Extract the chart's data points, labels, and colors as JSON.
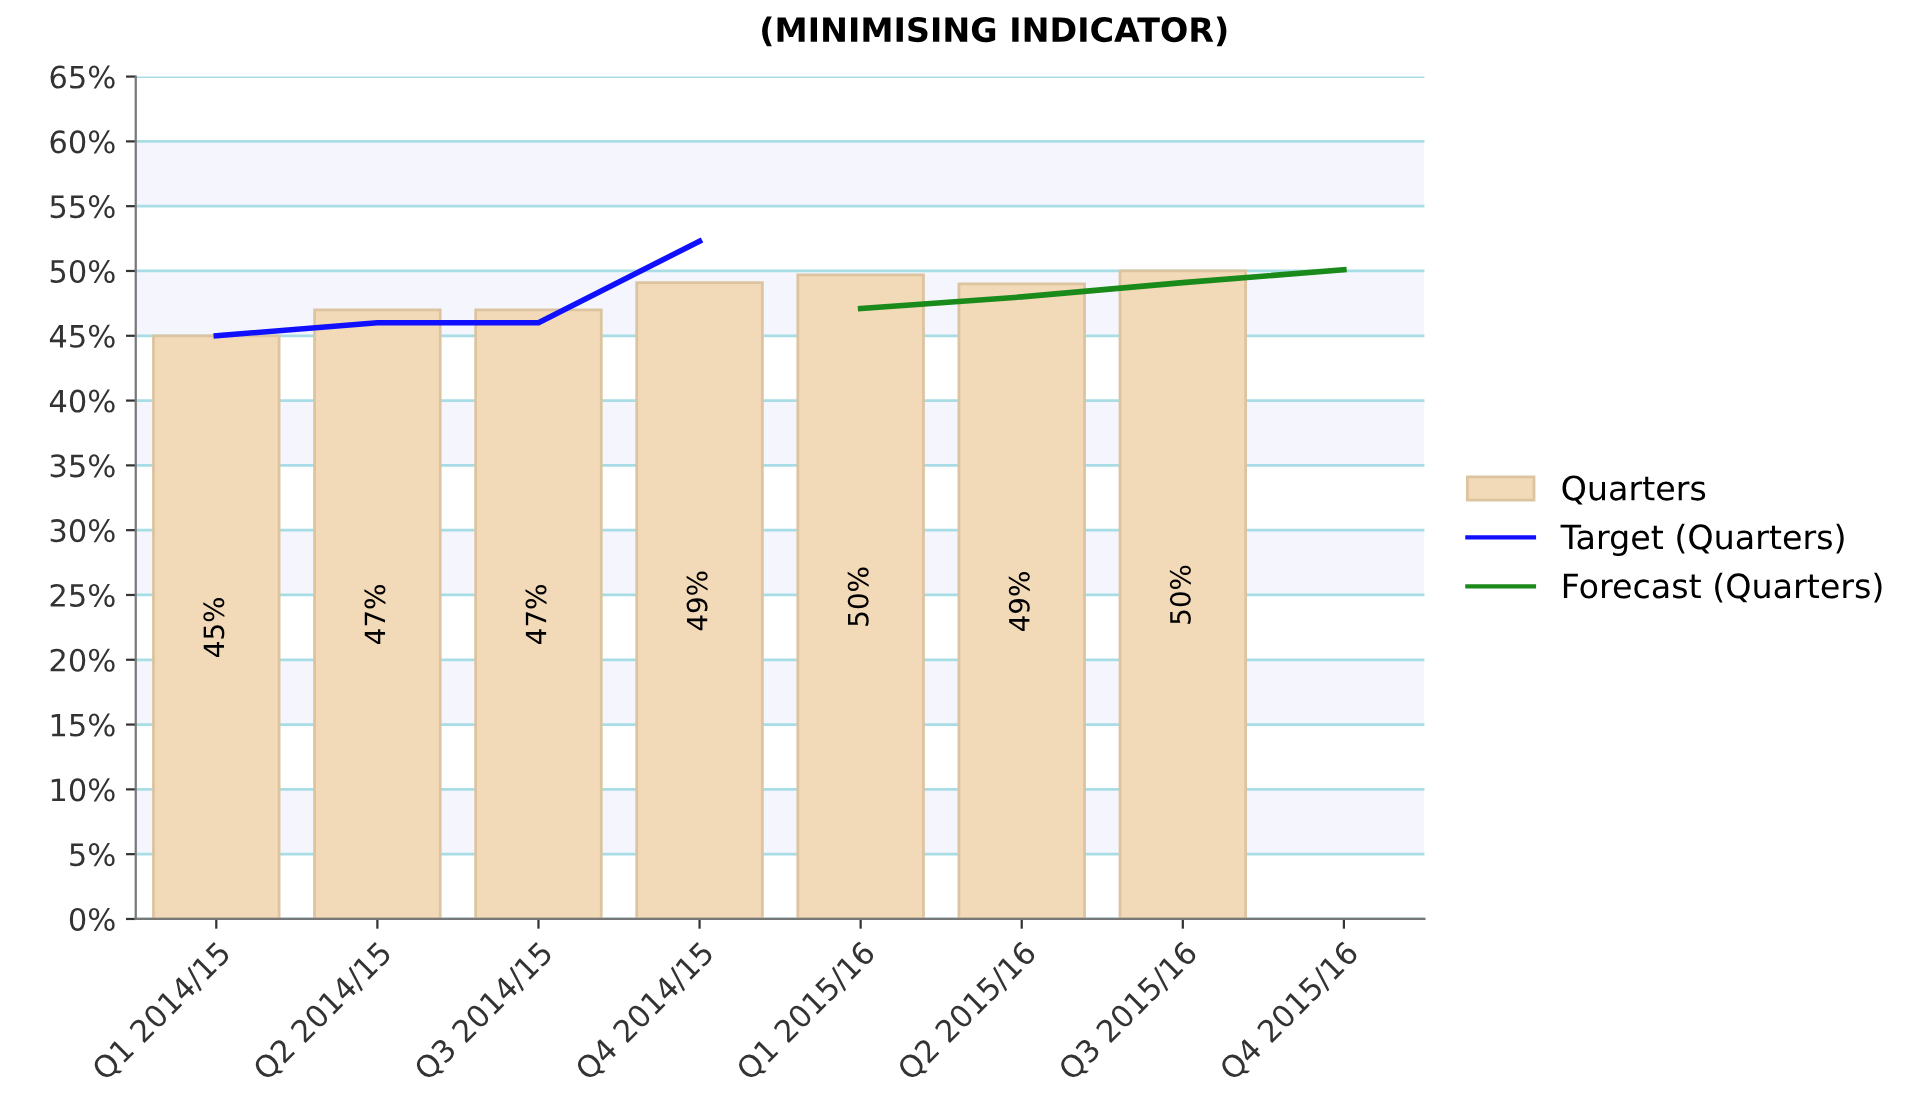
{
  "chart_data": {
    "type": "bar",
    "title": "(MINIMISING INDICATOR)",
    "categories": [
      "Q1 2014/15",
      "Q2 2014/15",
      "Q3 2014/15",
      "Q4 2014/15",
      "Q1 2015/16",
      "Q2 2015/16",
      "Q3 2015/16",
      "Q4 2015/16"
    ],
    "series": [
      {
        "name": "Quarters",
        "color": "#f2d9b8",
        "values": [
          45,
          47,
          47,
          49.1,
          49.7,
          49,
          50,
          null
        ],
        "value_labels": [
          "45%",
          "47%",
          "47%",
          "49%",
          "50%",
          "49%",
          "50%",
          null
        ]
      },
      {
        "name": "Target (Quarters)",
        "type": "line",
        "color": "#1010ff",
        "values": [
          45,
          46,
          46,
          52.3,
          null,
          null,
          null,
          null
        ]
      },
      {
        "name": "Forecast (Quarters)",
        "type": "line",
        "color": "#1a8a1a",
        "values": [
          null,
          null,
          null,
          null,
          47.1,
          48,
          49.1,
          50.1
        ]
      }
    ],
    "ylim": [
      0,
      65
    ],
    "yticks": [
      {
        "value": 0,
        "label": "0%"
      },
      {
        "value": 5,
        "label": "5%"
      },
      {
        "value": 10,
        "label": "10%"
      },
      {
        "value": 15,
        "label": "15%"
      },
      {
        "value": 20,
        "label": "20%"
      },
      {
        "value": 25,
        "label": "25%"
      },
      {
        "value": 30,
        "label": "30%"
      },
      {
        "value": 35,
        "label": "35%"
      },
      {
        "value": 40,
        "label": "40%"
      },
      {
        "value": 45,
        "label": "45%"
      },
      {
        "value": 50,
        "label": "50%"
      },
      {
        "value": 55,
        "label": "55%"
      },
      {
        "value": 60,
        "label": "60%"
      },
      {
        "value": 65,
        "label": "65%"
      }
    ],
    "grid": "y",
    "legend": "right",
    "marker": "none",
    "line_style": "solid"
  }
}
